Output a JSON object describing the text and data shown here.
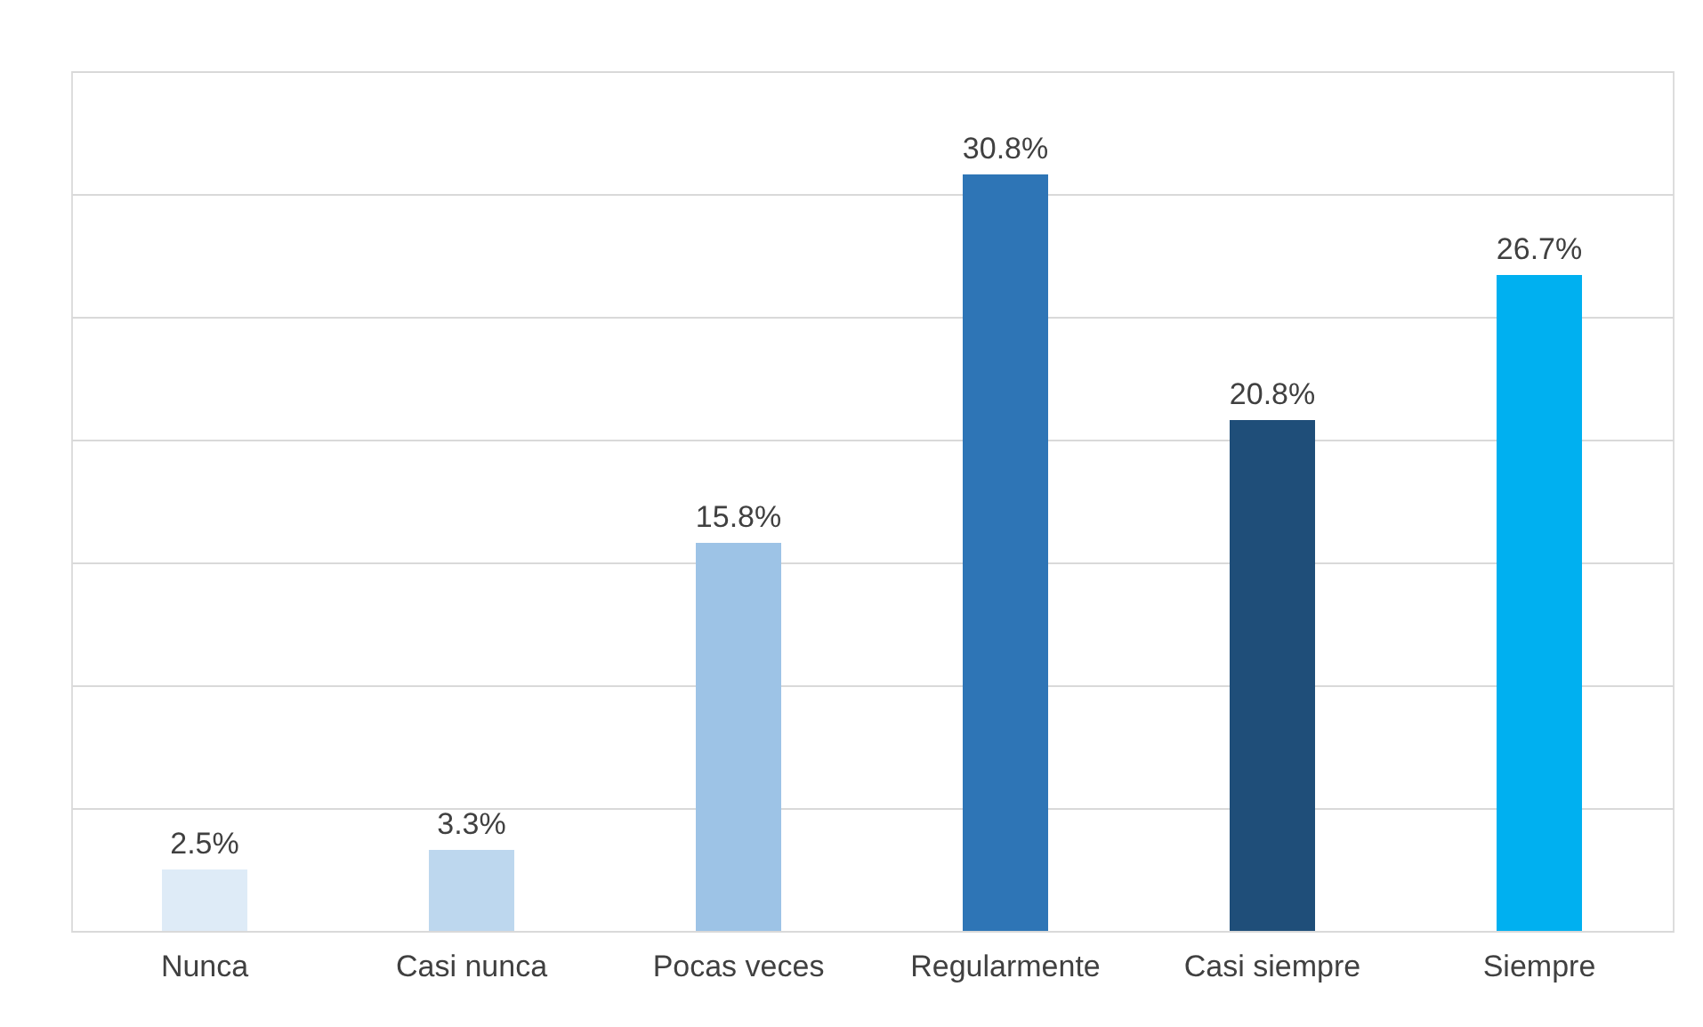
{
  "chart_data": {
    "type": "bar",
    "categories": [
      "Nunca",
      "Casi nunca",
      "Pocas veces",
      "Regularmente",
      "Casi siempre",
      "Siempre"
    ],
    "values": [
      2.5,
      3.3,
      15.8,
      30.8,
      20.8,
      26.7
    ],
    "colors": [
      "#deebf7",
      "#bdd7ee",
      "#9dc3e6",
      "#2e75b6",
      "#1f4e79",
      "#00b0f0"
    ],
    "value_labels": [
      "2.5%",
      "3.3%",
      "15.8%",
      "30.8%",
      "20.8%",
      "26.7%"
    ],
    "ylim": [
      0,
      35
    ],
    "yticks": [
      {
        "value": 0,
        "label": null
      },
      {
        "value": 5,
        "label": null
      },
      {
        "value": 10,
        "label": null
      },
      {
        "value": 15,
        "label": null
      },
      {
        "value": 20,
        "label": null
      },
      {
        "value": 25,
        "label": null
      },
      {
        "value": 30,
        "label": null
      },
      {
        "value": 35,
        "label": null
      }
    ],
    "grid": "y",
    "tick_labels": "x"
  }
}
